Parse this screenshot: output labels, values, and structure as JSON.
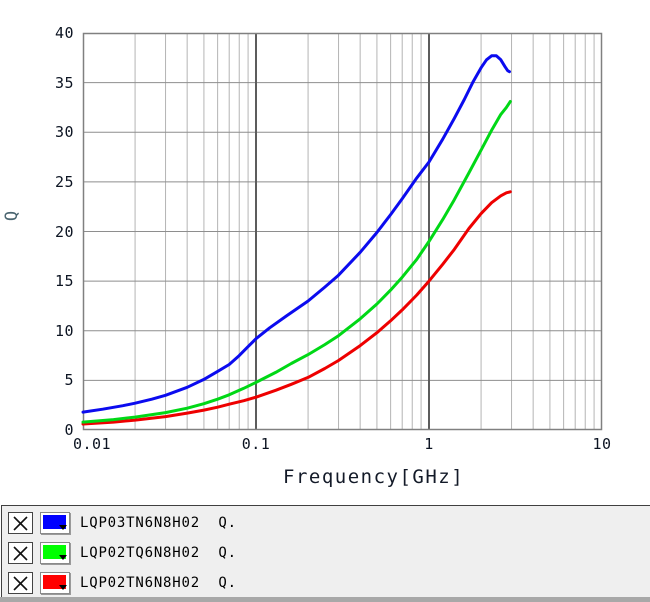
{
  "chart_data": {
    "type": "line",
    "title": "",
    "xlabel": "Frequency[GHz]",
    "ylabel": "Q",
    "x_scale": "log",
    "xlim": [
      0.01,
      10
    ],
    "ylim": [
      0,
      40
    ],
    "x_ticks": [
      0.01,
      0.1,
      1,
      10
    ],
    "y_ticks": [
      0,
      5,
      10,
      15,
      20,
      25,
      30,
      35,
      40
    ],
    "grid": {
      "horizontal_step": 5,
      "vertical": "log-decades with minor lines",
      "legend_position": "bottom-panel"
    },
    "series": [
      {
        "name": "LQP03TN6N8H02 Q.",
        "color": "#0b0bef",
        "points": [
          [
            0.01,
            1.8
          ],
          [
            0.013,
            2.1
          ],
          [
            0.017,
            2.45
          ],
          [
            0.02,
            2.7
          ],
          [
            0.025,
            3.1
          ],
          [
            0.03,
            3.5
          ],
          [
            0.04,
            4.3
          ],
          [
            0.05,
            5.1
          ],
          [
            0.06,
            5.9
          ],
          [
            0.07,
            6.6
          ],
          [
            0.08,
            7.5
          ],
          [
            0.09,
            8.4
          ],
          [
            0.1,
            9.2
          ],
          [
            0.12,
            10.3
          ],
          [
            0.15,
            11.5
          ],
          [
            0.2,
            13.0
          ],
          [
            0.25,
            14.4
          ],
          [
            0.3,
            15.6
          ],
          [
            0.4,
            17.9
          ],
          [
            0.5,
            19.9
          ],
          [
            0.6,
            21.7
          ],
          [
            0.7,
            23.3
          ],
          [
            0.85,
            25.4
          ],
          [
            1.0,
            27.0
          ],
          [
            1.2,
            29.3
          ],
          [
            1.4,
            31.4
          ],
          [
            1.6,
            33.3
          ],
          [
            1.8,
            35.1
          ],
          [
            2.0,
            36.5
          ],
          [
            2.15,
            37.3
          ],
          [
            2.3,
            37.7
          ],
          [
            2.45,
            37.7
          ],
          [
            2.6,
            37.3
          ],
          [
            2.75,
            36.6
          ],
          [
            2.85,
            36.2
          ],
          [
            2.92,
            36.1
          ]
        ]
      },
      {
        "name": "LQP02TQ6N8H02 Q.",
        "color": "#00d816",
        "points": [
          [
            0.01,
            0.8
          ],
          [
            0.015,
            1.05
          ],
          [
            0.02,
            1.3
          ],
          [
            0.03,
            1.75
          ],
          [
            0.04,
            2.2
          ],
          [
            0.05,
            2.65
          ],
          [
            0.06,
            3.1
          ],
          [
            0.07,
            3.55
          ],
          [
            0.085,
            4.2
          ],
          [
            0.1,
            4.8
          ],
          [
            0.13,
            5.8
          ],
          [
            0.16,
            6.7
          ],
          [
            0.2,
            7.6
          ],
          [
            0.25,
            8.6
          ],
          [
            0.3,
            9.5
          ],
          [
            0.4,
            11.2
          ],
          [
            0.5,
            12.7
          ],
          [
            0.6,
            14.1
          ],
          [
            0.7,
            15.4
          ],
          [
            0.85,
            17.2
          ],
          [
            1.0,
            19.0
          ],
          [
            1.2,
            21.2
          ],
          [
            1.4,
            23.2
          ],
          [
            1.7,
            25.9
          ],
          [
            2.0,
            28.2
          ],
          [
            2.3,
            30.2
          ],
          [
            2.6,
            31.8
          ],
          [
            2.8,
            32.5
          ],
          [
            2.95,
            33.1
          ]
        ]
      },
      {
        "name": "LQP02TN6N8H02 Q.",
        "color": "#ee0000",
        "points": [
          [
            0.01,
            0.6
          ],
          [
            0.015,
            0.8
          ],
          [
            0.02,
            1.0
          ],
          [
            0.03,
            1.35
          ],
          [
            0.04,
            1.7
          ],
          [
            0.05,
            2.0
          ],
          [
            0.06,
            2.3
          ],
          [
            0.07,
            2.6
          ],
          [
            0.085,
            2.95
          ],
          [
            0.1,
            3.3
          ],
          [
            0.13,
            4.0
          ],
          [
            0.16,
            4.6
          ],
          [
            0.2,
            5.3
          ],
          [
            0.25,
            6.2
          ],
          [
            0.3,
            7.0
          ],
          [
            0.4,
            8.5
          ],
          [
            0.5,
            9.8
          ],
          [
            0.6,
            11.0
          ],
          [
            0.7,
            12.1
          ],
          [
            0.85,
            13.6
          ],
          [
            1.0,
            15.0
          ],
          [
            1.2,
            16.7
          ],
          [
            1.4,
            18.2
          ],
          [
            1.7,
            20.3
          ],
          [
            2.0,
            21.8
          ],
          [
            2.3,
            22.9
          ],
          [
            2.6,
            23.6
          ],
          [
            2.8,
            23.9
          ],
          [
            2.95,
            24.0
          ]
        ]
      }
    ]
  },
  "legend": {
    "items": [
      {
        "label": "LQP03TN6N8H02  Q.",
        "color": "#0000ff",
        "remove_icon": "x-icon",
        "dropdown_icon": "triangle-down-icon"
      },
      {
        "label": "LQP02TQ6N8H02  Q.",
        "color": "#00ff00",
        "remove_icon": "x-icon",
        "dropdown_icon": "triangle-down-icon"
      },
      {
        "label": "LQP02TN6N8H02  Q.",
        "color": "#ff0000",
        "remove_icon": "x-icon",
        "dropdown_icon": "triangle-down-icon"
      }
    ]
  },
  "colors": {
    "frame": "#808080",
    "grid_horizontal": "#8e8e8e",
    "grid_minor_vertical": "#b4b4b4",
    "grid_major_vertical": "#5c5c5c",
    "tick_text": "#0c1422",
    "axis_title": "#4a6570",
    "legend_bg": "#efefef"
  }
}
